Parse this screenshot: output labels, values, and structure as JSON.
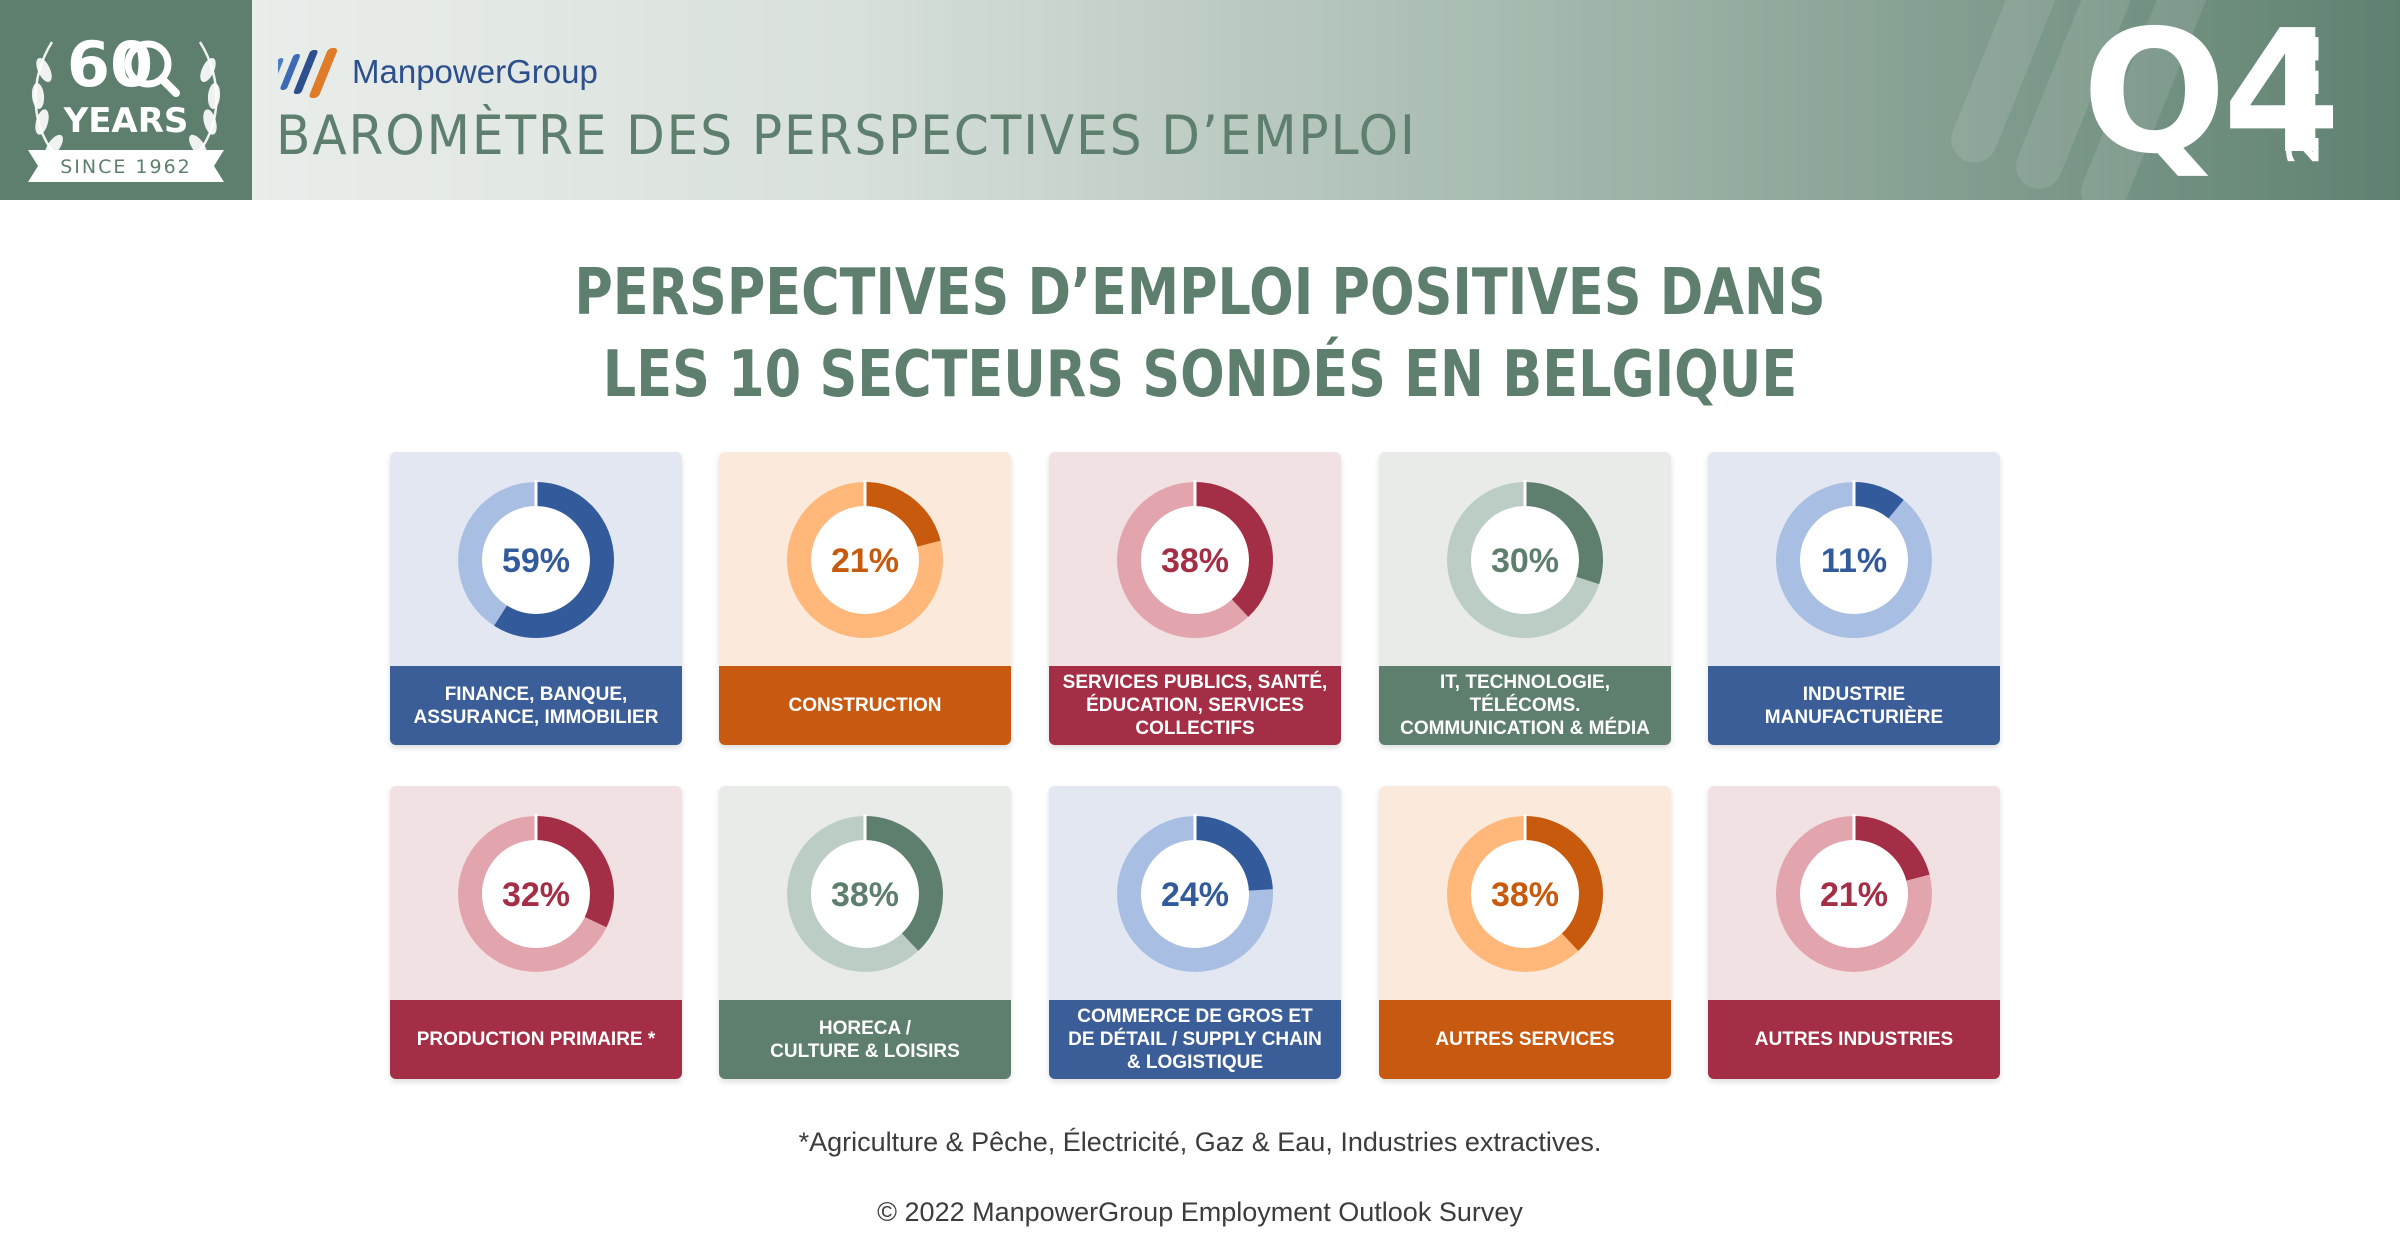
{
  "header": {
    "badge": {
      "number": "60",
      "years": "YEARS",
      "since": "SINCE 1962"
    },
    "logo_text": "ManpowerGroup",
    "subtitle": "BAROMÈTRE DES PERSPECTIVES D’EMPLOI",
    "quarter": "Q4",
    "year": "2022"
  },
  "title": {
    "line1": "PERSPECTIVES D’EMPLOI POSITIVES DANS",
    "line2": "LES 10 SECTEURS SONDÉS EN BELGIQUE"
  },
  "colors": {
    "green": "#5e7f6d",
    "blue": "#3b5e98",
    "orange": "#c75a10",
    "red": "#a32e45"
  },
  "themes": {
    "blue": {
      "bg": "#e2e7f1",
      "light": "#a8bee2",
      "dark": "#335b9b",
      "text": "#335b9b",
      "label": "#3b5e98"
    },
    "orange": {
      "bg": "#fbe9dc",
      "light": "#ffb77a",
      "dark": "#c85a0d",
      "text": "#c85a0d",
      "label": "#c75a10"
    },
    "red": {
      "bg": "#f2e1e3",
      "light": "#e2a5ae",
      "dark": "#a32e45",
      "text": "#a32e45",
      "label": "#a32e45"
    },
    "green": {
      "bg": "#e9ebe9",
      "light": "#bccdc5",
      "dark": "#5e7f6d",
      "text": "#5e7f6d",
      "label": "#5e7f6d"
    }
  },
  "chart_data": {
    "type": "donut",
    "title": "PERSPECTIVES D’EMPLOI POSITIVES DANS LES 10 SECTEURS SONDÉS EN BELGIQUE",
    "unit": "%",
    "categories": [
      "FINANCE, BANQUE, ASSURANCE, IMMOBILIER",
      "CONSTRUCTION",
      "SERVICES PUBLICS, SANTÉ, ÉDUCATION, SERVICES COLLECTIFS",
      "IT, TECHNOLOGIE, TÉLÉCOMS. COMMUNICATION & MÉDIA",
      "INDUSTRIE MANUFACTURIÈRE",
      "PRODUCTION PRIMAIRE *",
      "HORECA / CULTURE & LOISIRS",
      "COMMERCE DE GROS ET DE DÉTAIL / SUPPLY CHAIN & LOGISTIQUE",
      "AUTRES SERVICES",
      "AUTRES INDUSTRIES"
    ],
    "values": [
      59,
      21,
      38,
      30,
      11,
      32,
      38,
      24,
      38,
      21
    ]
  },
  "sectors": [
    {
      "label": "FINANCE, BANQUE,\nASSURANCE, IMMOBILIER",
      "value": 59,
      "value_text": "59%",
      "theme": "blue"
    },
    {
      "label": "CONSTRUCTION",
      "value": 21,
      "value_text": "21%",
      "theme": "orange"
    },
    {
      "label": "SERVICES PUBLICS, SANTÉ,\nÉDUCATION, SERVICES\nCOLLECTIFS",
      "value": 38,
      "value_text": "38%",
      "theme": "red"
    },
    {
      "label": "IT, TECHNOLOGIE,\nTÉLÉCOMS.\nCOMMUNICATION & MÉDIA",
      "value": 30,
      "value_text": "30%",
      "theme": "green"
    },
    {
      "label": "INDUSTRIE\nMANUFACTURIÈRE",
      "value": 11,
      "value_text": "11%",
      "theme": "blue"
    },
    {
      "label": "PRODUCTION PRIMAIRE *",
      "value": 32,
      "value_text": "32%",
      "theme": "red"
    },
    {
      "label": "HORECA /\nCULTURE & LOISIRS",
      "value": 38,
      "value_text": "38%",
      "theme": "green"
    },
    {
      "label": "COMMERCE DE GROS ET\nDE DÉTAIL / SUPPLY CHAIN\n& LOGISTIQUE",
      "value": 24,
      "value_text": "24%",
      "theme": "blue"
    },
    {
      "label": "AUTRES SERVICES",
      "value": 38,
      "value_text": "38%",
      "theme": "orange"
    },
    {
      "label": "AUTRES INDUSTRIES",
      "value": 21,
      "value_text": "21%",
      "theme": "red"
    }
  ],
  "footnote": "*Agriculture & Pêche, Électricité, Gaz & Eau, Industries extractives.",
  "copyright": "© 2022 ManpowerGroup Employment Outlook Survey"
}
